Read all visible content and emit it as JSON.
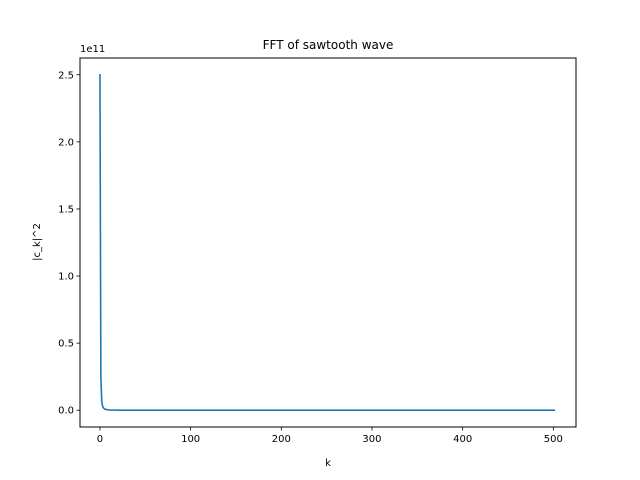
{
  "chart_data": {
    "type": "line",
    "title": "FFT of sawtooth wave",
    "xlabel": "k",
    "ylabel": "|c_k|^2",
    "y_offset_text": "1e11",
    "xlim": [
      -22,
      525
    ],
    "ylim": [
      -0.125,
      2.625
    ],
    "xticks": [
      0,
      100,
      200,
      300,
      400,
      500
    ],
    "xtick_labels": [
      "0",
      "100",
      "200",
      "300",
      "400",
      "500"
    ],
    "yticks": [
      0.0,
      0.5,
      1.0,
      1.5,
      2.0,
      2.5
    ],
    "ytick_labels": [
      "0.0",
      "0.5",
      "1.0",
      "1.5",
      "2.0",
      "2.5"
    ],
    "grid": false,
    "series": [
      {
        "color": "#1f77b4",
        "x": [
          0,
          1,
          2,
          3,
          4,
          5,
          6,
          8,
          10,
          15,
          20,
          30,
          50,
          100,
          200,
          300,
          400,
          501
        ],
        "y": [
          2.5,
          0.25,
          0.063,
          0.028,
          0.016,
          0.01,
          0.007,
          0.004,
          0.0025,
          0.0011,
          0.0006,
          0.0003,
          0.0001,
          3e-05,
          1e-05,
          0.0,
          0.0,
          0.0
        ]
      }
    ]
  }
}
